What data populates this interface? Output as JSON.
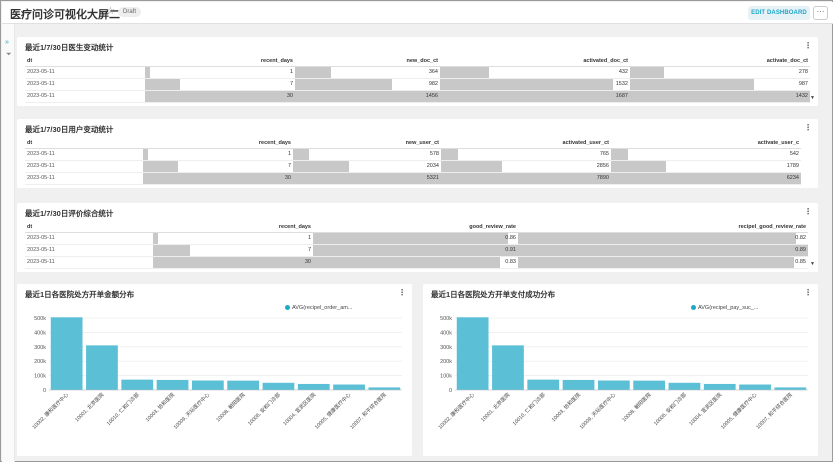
{
  "header": {
    "title": "医疗问诊可视化大屏二",
    "star": "☆",
    "draft": "Draft",
    "edit_label": "EDIT DASHBOARD",
    "more_label": "···"
  },
  "sidebar": {
    "arrow": "»",
    "filter": "⏷"
  },
  "table1": {
    "title": "最近1/7/30日医生变动统计",
    "kebab": "⋮",
    "columns": [
      "dt",
      "recent_days",
      "new_doc_ct",
      "activated_doc_ct",
      "activate_doc_ct"
    ],
    "rows": [
      [
        "2023-05-11",
        "1",
        "364",
        "432",
        "278"
      ],
      [
        "2023-05-11",
        "7",
        "982",
        "1532",
        "987"
      ],
      [
        "2023-05-11",
        "30",
        "1456",
        "1687",
        "1432"
      ]
    ],
    "fractions": [
      [
        0.03,
        0.25,
        0.26,
        0.19
      ],
      [
        0.23,
        0.67,
        0.91,
        0.69
      ],
      [
        1,
        1,
        1,
        1
      ]
    ],
    "scroll": "▼"
  },
  "table2": {
    "title": "最近1/7/30日用户变动统计",
    "kebab": "⋮",
    "columns": [
      "dt",
      "recent_days",
      "new_user_ct",
      "activated_user_ct",
      "activate_user_c"
    ],
    "rows": [
      [
        "2023-05-11",
        "1",
        "578",
        "765",
        "542"
      ],
      [
        "2023-05-11",
        "7",
        "2034",
        "2856",
        "1789"
      ],
      [
        "2023-05-11",
        "30",
        "5321",
        "7890",
        "6234"
      ]
    ],
    "fractions": [
      [
        0.03,
        0.11,
        0.1,
        0.09
      ],
      [
        0.23,
        0.38,
        0.36,
        0.29
      ],
      [
        1,
        1,
        1,
        1
      ]
    ]
  },
  "table3": {
    "title": "最近1/7/30日评价综合统计",
    "kebab": "⋮",
    "columns": [
      "dt",
      "recent_days",
      "good_review_rate",
      "recipel_good_review_rate"
    ],
    "rows": [
      [
        "2023-05-11",
        "1",
        "0.86",
        "0.82"
      ],
      [
        "2023-05-11",
        "7",
        "0.91",
        "0.89"
      ],
      [
        "2023-05-11",
        "30",
        "0.83",
        "0.85"
      ]
    ],
    "fractions": [
      [
        0.03,
        0.95,
        0.96
      ],
      [
        0.23,
        1,
        1
      ],
      [
        1,
        0.91,
        0.95
      ]
    ],
    "scroll": "▼"
  },
  "chart_data": [
    {
      "type": "bar",
      "title": "最近1日各医院处方开单金额分布",
      "legend": "AVG(recipel_order_am...",
      "categories": [
        "10002, 康和医疗中心",
        "10001, 北京医院",
        "10010, 仁和门诊部",
        "10003, 协和医院",
        "10009, 天坛医疗中心",
        "10008, 朝阳医院",
        "10006, 安和门诊部",
        "10004, 宣武区医院",
        "10005, 健康医疗中心",
        "10007, 和平综合医院"
      ],
      "values": [
        505000,
        310000,
        72000,
        70000,
        66000,
        65000,
        50000,
        42000,
        38000,
        18000
      ],
      "ylim": [
        0,
        500000
      ],
      "yticks": [
        "0",
        "100k",
        "200k",
        "300k",
        "400k",
        "500k"
      ],
      "color": "#5bc0d6"
    },
    {
      "type": "bar",
      "title": "最近1日各医院处方开单支付成功分布",
      "legend": "AVG(recipel_pay_suc_...",
      "categories": [
        "10002, 康和医疗中心",
        "10001, 北京医院",
        "10010, 仁和门诊部",
        "10003, 协和医院",
        "10009, 天坛医疗中心",
        "10008, 朝阳医院",
        "10006, 安和门诊部",
        "10004, 宣武区医院",
        "10005, 健康医疗中心",
        "10007, 和平综合医院"
      ],
      "values": [
        505000,
        310000,
        72000,
        70000,
        66000,
        65000,
        50000,
        42000,
        38000,
        18000
      ],
      "ylim": [
        0,
        500000
      ],
      "yticks": [
        "0",
        "100k",
        "200k",
        "300k",
        "400k",
        "500k"
      ],
      "color": "#5bc0d6"
    }
  ],
  "chart_kebab": "⋮"
}
